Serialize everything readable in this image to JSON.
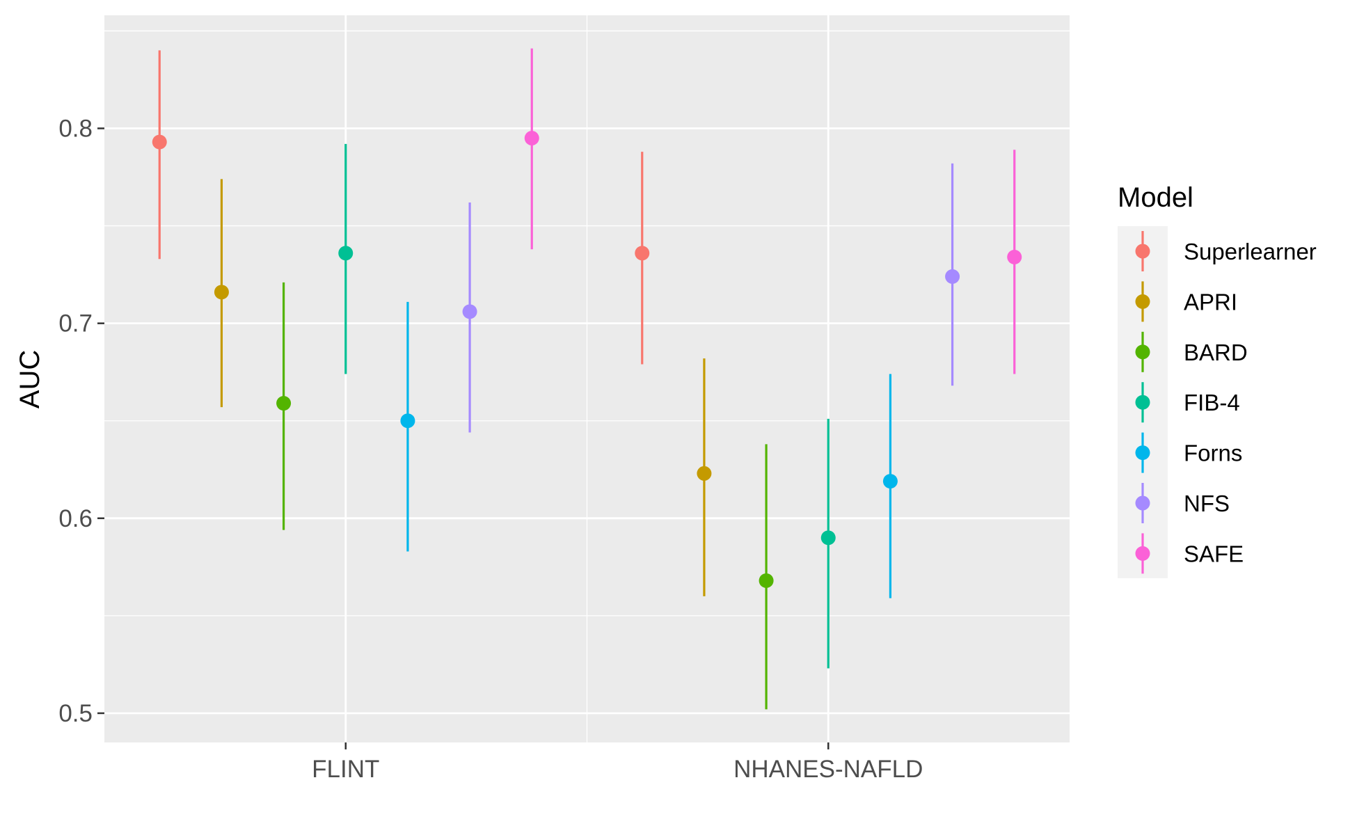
{
  "chart_data": {
    "type": "scatter",
    "subtype": "pointrange",
    "title": "",
    "xlabel": "",
    "ylabel": "AUC",
    "ylim": [
      0.485,
      0.858
    ],
    "y_ticks": [
      0.5,
      0.6,
      0.7,
      0.8
    ],
    "y_tick_labels": [
      "0.5",
      "0.6",
      "0.7",
      "0.8"
    ],
    "categories": [
      "FLINT",
      "NHANES-NAFLD"
    ],
    "grid": true,
    "legend": {
      "title": "Model",
      "position": "right"
    },
    "series": [
      {
        "name": "Superlearner",
        "color": "#F8766D",
        "values": [
          0.793,
          0.736
        ],
        "lower": [
          0.733,
          0.679
        ],
        "upper": [
          0.84,
          0.788
        ]
      },
      {
        "name": "APRI",
        "color": "#C49A00",
        "values": [
          0.716,
          0.623
        ],
        "lower": [
          0.657,
          0.56
        ],
        "upper": [
          0.774,
          0.682
        ]
      },
      {
        "name": "BARD",
        "color": "#53B400",
        "values": [
          0.659,
          0.568
        ],
        "lower": [
          0.594,
          0.502
        ],
        "upper": [
          0.721,
          0.638
        ]
      },
      {
        "name": "FIB-4",
        "color": "#00C094",
        "values": [
          0.736,
          0.59
        ],
        "lower": [
          0.674,
          0.523
        ],
        "upper": [
          0.792,
          0.651
        ]
      },
      {
        "name": "Forns",
        "color": "#00B6EB",
        "values": [
          0.65,
          0.619
        ],
        "lower": [
          0.583,
          0.559
        ],
        "upper": [
          0.711,
          0.674
        ]
      },
      {
        "name": "NFS",
        "color": "#A58AFF",
        "values": [
          0.706,
          0.724
        ],
        "lower": [
          0.644,
          0.668
        ],
        "upper": [
          0.762,
          0.782
        ]
      },
      {
        "name": "SAFE",
        "color": "#FB61D7",
        "values": [
          0.795,
          0.734
        ],
        "lower": [
          0.738,
          0.674
        ],
        "upper": [
          0.841,
          0.789
        ]
      }
    ]
  }
}
